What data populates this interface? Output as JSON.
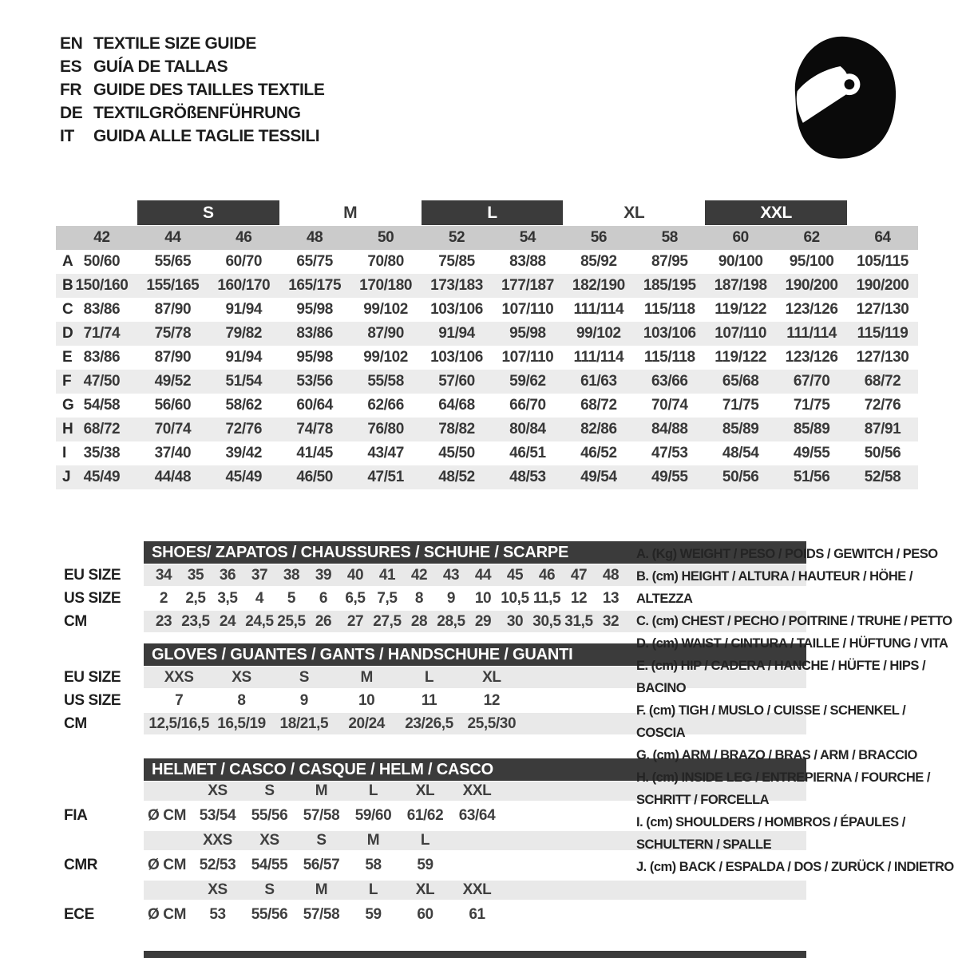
{
  "colors": {
    "dark_bar": "#3b3b3b",
    "band_gray": "#e9e9e9",
    "header_band": "#cbcbcb",
    "stripe": "#ececec",
    "helmet_black": "#0a0a0a",
    "text": "#383838"
  },
  "header": {
    "languages": [
      {
        "code": "EN",
        "label": "TEXTILE SIZE GUIDE"
      },
      {
        "code": "ES",
        "label": "GUÍA DE TALLAS"
      },
      {
        "code": "FR",
        "label": "GUIDE DES TAILLES TEXTILE"
      },
      {
        "code": "DE",
        "label": "TEXTILGRÖßENFÜHRUNG"
      },
      {
        "code": "IT",
        "label": "GUIDA ALLE TAGLIE TESSILI"
      }
    ],
    "icon": "racing-helmet-icon"
  },
  "main_table": {
    "groups": [
      {
        "label": "S",
        "filled": true
      },
      {
        "label": "M",
        "filled": false
      },
      {
        "label": "L",
        "filled": true
      },
      {
        "label": "XL",
        "filled": false
      },
      {
        "label": "XXL",
        "filled": true
      }
    ],
    "columns": [
      "42",
      "44",
      "46",
      "48",
      "50",
      "52",
      "54",
      "56",
      "58",
      "60",
      "62",
      "64"
    ],
    "rows": [
      {
        "label": "A",
        "values": [
          "50/60",
          "55/65",
          "60/70",
          "65/75",
          "70/80",
          "75/85",
          "83/88",
          "85/92",
          "87/95",
          "90/100",
          "95/100",
          "105/115"
        ]
      },
      {
        "label": "B",
        "values": [
          "150/160",
          "155/165",
          "160/170",
          "165/175",
          "170/180",
          "173/183",
          "177/187",
          "182/190",
          "185/195",
          "187/198",
          "190/200",
          "190/200"
        ]
      },
      {
        "label": "C",
        "values": [
          "83/86",
          "87/90",
          "91/94",
          "95/98",
          "99/102",
          "103/106",
          "107/110",
          "111/114",
          "115/118",
          "119/122",
          "123/126",
          "127/130"
        ]
      },
      {
        "label": "D",
        "values": [
          "71/74",
          "75/78",
          "79/82",
          "83/86",
          "87/90",
          "91/94",
          "95/98",
          "99/102",
          "103/106",
          "107/110",
          "111/114",
          "115/119"
        ]
      },
      {
        "label": "E",
        "values": [
          "83/86",
          "87/90",
          "91/94",
          "95/98",
          "99/102",
          "103/106",
          "107/110",
          "111/114",
          "115/118",
          "119/122",
          "123/126",
          "127/130"
        ]
      },
      {
        "label": "F",
        "values": [
          "47/50",
          "49/52",
          "51/54",
          "53/56",
          "55/58",
          "57/60",
          "59/62",
          "61/63",
          "63/66",
          "65/68",
          "67/70",
          "68/72"
        ]
      },
      {
        "label": "G",
        "values": [
          "54/58",
          "56/60",
          "58/62",
          "60/64",
          "62/66",
          "64/68",
          "66/70",
          "68/72",
          "70/74",
          "71/75",
          "71/75",
          "72/76"
        ]
      },
      {
        "label": "H",
        "values": [
          "68/72",
          "70/74",
          "72/76",
          "74/78",
          "76/80",
          "78/82",
          "80/84",
          "82/86",
          "84/88",
          "85/89",
          "85/89",
          "87/91"
        ]
      },
      {
        "label": "I",
        "values": [
          "35/38",
          "37/40",
          "39/42",
          "41/45",
          "43/47",
          "45/50",
          "46/51",
          "46/52",
          "47/53",
          "48/54",
          "49/55",
          "50/56"
        ]
      },
      {
        "label": "J",
        "values": [
          "45/49",
          "44/48",
          "45/49",
          "46/50",
          "47/51",
          "48/52",
          "48/53",
          "49/54",
          "49/55",
          "50/56",
          "51/56",
          "52/58"
        ]
      }
    ]
  },
  "shoes": {
    "title": "SHOES/ ZAPATOS / CHAUSSURES / SCHUHE / SCARPE",
    "rows": [
      {
        "label": "EU SIZE",
        "values": [
          "34",
          "35",
          "36",
          "37",
          "38",
          "39",
          "40",
          "41",
          "42",
          "43",
          "44",
          "45",
          "46",
          "47",
          "48"
        ]
      },
      {
        "label": "US SIZE",
        "values": [
          "2",
          "2,5",
          "3,5",
          "4",
          "5",
          "6",
          "6,5",
          "7,5",
          "8",
          "9",
          "10",
          "10,5",
          "11,5",
          "12",
          "13"
        ]
      },
      {
        "label": "CM",
        "values": [
          "23",
          "23,5",
          "24",
          "24,5",
          "25,5",
          "26",
          "27",
          "27,5",
          "28",
          "28,5",
          "29",
          "30",
          "30,5",
          "31,5",
          "32"
        ]
      }
    ]
  },
  "gloves": {
    "title": "GLOVES / GUANTES / GANTS / HANDSCHUHE / GUANTI",
    "rows": [
      {
        "label": "EU SIZE",
        "values": [
          "XXS",
          "XS",
          "S",
          "M",
          "L",
          "XL"
        ]
      },
      {
        "label": "US SIZE",
        "values": [
          "7",
          "8",
          "9",
          "10",
          "11",
          "12"
        ]
      },
      {
        "label": "CM",
        "values": [
          "12,5/16,5",
          "16,5/19",
          "18/21,5",
          "20/24",
          "23/26,5",
          "25,5/30"
        ]
      }
    ]
  },
  "helmet": {
    "title": "HELMET / CASCO / CASQUE / HELM / CASCO",
    "unit_label": "Ø CM",
    "standards": [
      {
        "label": "FIA",
        "sizes": [
          "XS",
          "S",
          "M",
          "L",
          "XL",
          "XXL"
        ],
        "values": [
          "53/54",
          "55/56",
          "57/58",
          "59/60",
          "61/62",
          "63/64"
        ]
      },
      {
        "label": "CMR",
        "sizes": [
          "XXS",
          "XS",
          "S",
          "M",
          "L",
          ""
        ],
        "values": [
          "52/53",
          "54/55",
          "56/57",
          "58",
          "59",
          ""
        ]
      },
      {
        "label": "ECE",
        "sizes": [
          "XS",
          "S",
          "M",
          "L",
          "XL",
          "XXL"
        ],
        "values": [
          "53",
          "55/56",
          "57/58",
          "59",
          "60",
          "61"
        ]
      }
    ]
  },
  "legend": {
    "items": [
      "A. (Kg) WEIGHT / PESO / POIDS / GEWITCH / PESO",
      "B. (cm) HEIGHT / ALTURA / HAUTEUR / HÖHE / ALTEZZA",
      "C. (cm) CHEST / PECHO / POITRINE / TRUHE / PETTO",
      "D. (cm) WAIST / CINTURA / TAILLE / HÜFTUNG / VITA",
      "E. (cm) HIP / CADERA / HANCHE / HÜFTE / HIPS / BACINO",
      "F. (cm) TIGH / MUSLO / CUISSE / SCHENKEL / COSCIA",
      "G. (cm) ARM / BRAZO / BRAS / ARM / BRACCIO",
      "H. (cm) INSIDE LEG / ENTREPIERNA / FOURCHE / SCHRITT / FORCELLA",
      "I. (cm) SHOULDERS / HOMBROS / ÉPAULES / SCHULTERN / SPALLE",
      "J. (cm) BACK / ESPALDA / DOS / ZURÜCK / INDIETRO"
    ]
  }
}
